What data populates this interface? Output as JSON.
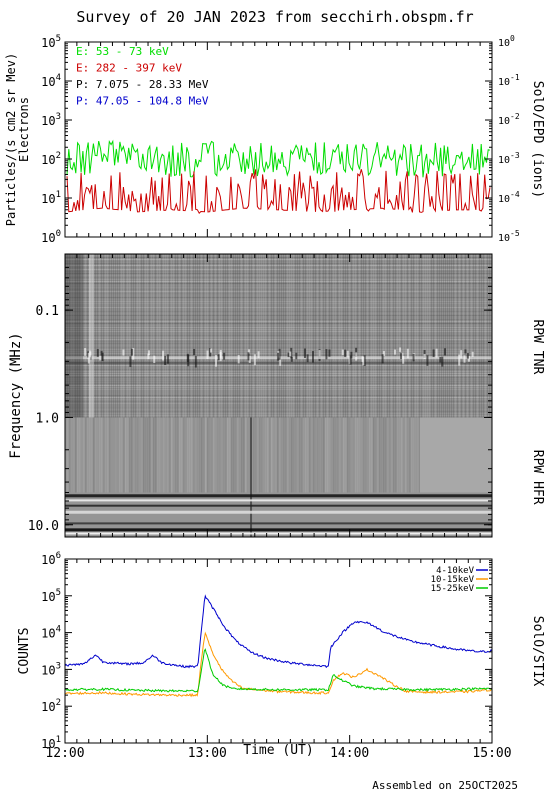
{
  "title": "Survey of 20 JAN 2023 from secchirh.obspm.fr",
  "footer": "Assembled on 25OCT2025",
  "panels": {
    "epd": {
      "ylabel_left_1": "Particles/(s cm2 sr Mev)",
      "ylabel_left_2": "Electrons",
      "ylabel_right": "SolO/EPD (ions)",
      "legend": [
        {
          "label": "E: 53 - 73 keV",
          "color": "#00dd00"
        },
        {
          "label": "E: 282 - 397 keV",
          "color": "#cc0000"
        },
        {
          "label": "P: 7.075 - 28.33 MeV",
          "color": "#000000"
        },
        {
          "label": "P: 47.05 - 104.8 MeV",
          "color": "#0000cc"
        }
      ],
      "left_ticks": [
        {
          "base": "10",
          "exp": "0"
        },
        {
          "base": "10",
          "exp": "1"
        },
        {
          "base": "10",
          "exp": "2"
        },
        {
          "base": "10",
          "exp": "3"
        },
        {
          "base": "10",
          "exp": "4"
        },
        {
          "base": "10",
          "exp": "5"
        }
      ],
      "right_ticks": [
        {
          "base": "10",
          "exp": "-5"
        },
        {
          "base": "10",
          "exp": "-4"
        },
        {
          "base": "10",
          "exp": "-3"
        },
        {
          "base": "10",
          "exp": "-2"
        },
        {
          "base": "10",
          "exp": "-1"
        },
        {
          "base": "10",
          "exp": "0"
        }
      ]
    },
    "rpw": {
      "ylabel": "Frequency (MHz)",
      "label_tnr": "RPW TNR",
      "label_hfr": "RPW HFR",
      "ticks": [
        "0.1",
        "1.0",
        "10.0"
      ]
    },
    "stix": {
      "ylabel": "COUNTS",
      "ylabel_right": "SolO/STIX",
      "legend": [
        {
          "label": "4-10keV",
          "color": "#0000cc"
        },
        {
          "label": "10-15keV",
          "color": "#ff9900"
        },
        {
          "label": "15-25keV",
          "color": "#00cc00"
        }
      ],
      "ticks": [
        {
          "base": "10",
          "exp": "1"
        },
        {
          "base": "10",
          "exp": "2"
        },
        {
          "base": "10",
          "exp": "3"
        },
        {
          "base": "10",
          "exp": "4"
        },
        {
          "base": "10",
          "exp": "5"
        },
        {
          "base": "10",
          "exp": "6"
        }
      ],
      "xlabel": "Time (UT)",
      "xticks": [
        "12:00",
        "13:00",
        "14:00",
        "15:00"
      ]
    }
  },
  "chart_data": [
    {
      "type": "line",
      "panel": "SolO/EPD",
      "yscale": "log",
      "ylim": [
        1,
        100000
      ],
      "y2lim": [
        1e-05,
        1
      ],
      "xlim": [
        "12:00",
        "15:00"
      ],
      "x": [
        "12:00",
        "12:15",
        "12:30",
        "12:45",
        "13:00",
        "13:15",
        "13:30",
        "13:45",
        "14:00",
        "14:15",
        "14:30",
        "14:45",
        "15:00"
      ],
      "series": [
        {
          "name": "E: 53 - 73 keV",
          "color": "#00dd00",
          "values": [
            100,
            110,
            100,
            95,
            100,
            105,
            100,
            100,
            110,
            100,
            95,
            100,
            100
          ]
        },
        {
          "name": "E: 282 - 397 keV",
          "color": "#cc0000",
          "values": [
            8,
            10,
            8,
            9,
            8,
            10,
            9,
            8,
            9,
            10,
            8,
            9,
            9
          ]
        }
      ]
    },
    {
      "type": "heatmap",
      "panel": "RPW TNR / RPW HFR",
      "yscale": "log",
      "ylim": [
        0.03,
        13
      ],
      "y_reversed": true,
      "xlim": [
        "12:00",
        "15:00"
      ]
    },
    {
      "type": "line",
      "panel": "SolO/STIX",
      "yscale": "log",
      "ylim": [
        10,
        1000000
      ],
      "xlim": [
        "12:00",
        "15:00"
      ],
      "series": [
        {
          "name": "4-10keV",
          "color": "#0000cc",
          "points": [
            [
              "12:00",
              1300
            ],
            [
              "12:08",
              1400
            ],
            [
              "12:13",
              2500
            ],
            [
              "12:16",
              1600
            ],
            [
              "12:25",
              1400
            ],
            [
              "12:33",
              1500
            ],
            [
              "12:37",
              2400
            ],
            [
              "12:41",
              1500
            ],
            [
              "12:50",
              1200
            ],
            [
              "12:56",
              1200
            ],
            [
              "12:57",
              6000
            ],
            [
              "12:59",
              100000
            ],
            [
              "13:03",
              40000
            ],
            [
              "13:07",
              15000
            ],
            [
              "13:12",
              6000
            ],
            [
              "13:18",
              3000
            ],
            [
              "13:25",
              2000
            ],
            [
              "13:35",
              1500
            ],
            [
              "13:45",
              1300
            ],
            [
              "13:51",
              1200
            ],
            [
              "13:52",
              4000
            ],
            [
              "13:57",
              10000
            ],
            [
              "14:02",
              20000
            ],
            [
              "14:08",
              18000
            ],
            [
              "14:15",
              10000
            ],
            [
              "14:25",
              6000
            ],
            [
              "14:35",
              4500
            ],
            [
              "14:45",
              3500
            ],
            [
              "14:55",
              3000
            ],
            [
              "15:00",
              3200
            ]
          ]
        },
        {
          "name": "10-15keV",
          "color": "#ff9900",
          "points": [
            [
              "12:00",
              220
            ],
            [
              "12:15",
              230
            ],
            [
              "12:30",
              210
            ],
            [
              "12:45",
              200
            ],
            [
              "12:56",
              200
            ],
            [
              "12:57",
              1000
            ],
            [
              "12:59",
              10000
            ],
            [
              "13:02",
              3000
            ],
            [
              "13:06",
              1000
            ],
            [
              "13:10",
              500
            ],
            [
              "13:15",
              300
            ],
            [
              "13:30",
              250
            ],
            [
              "13:45",
              230
            ],
            [
              "13:51",
              230
            ],
            [
              "13:53",
              500
            ],
            [
              "13:57",
              800
            ],
            [
              "14:02",
              600
            ],
            [
              "14:07",
              1000
            ],
            [
              "14:12",
              700
            ],
            [
              "14:18",
              400
            ],
            [
              "14:24",
              250
            ],
            [
              "14:35",
              240
            ],
            [
              "14:50",
              250
            ],
            [
              "15:00",
              280
            ]
          ]
        },
        {
          "name": "15-25keV",
          "color": "#00cc00",
          "points": [
            [
              "12:00",
              280
            ],
            [
              "12:15",
              290
            ],
            [
              "12:30",
              270
            ],
            [
              "12:45",
              260
            ],
            [
              "12:56",
              260
            ],
            [
              "12:57",
              600
            ],
            [
              "12:59",
              4000
            ],
            [
              "13:02",
              800
            ],
            [
              "13:06",
              400
            ],
            [
              "13:10",
              300
            ],
            [
              "13:30",
              280
            ],
            [
              "13:51",
              280
            ],
            [
              "13:53",
              700
            ],
            [
              "13:57",
              500
            ],
            [
              "14:02",
              350
            ],
            [
              "14:10",
              300
            ],
            [
              "14:30",
              280
            ],
            [
              "15:00",
              300
            ]
          ]
        }
      ]
    }
  ]
}
